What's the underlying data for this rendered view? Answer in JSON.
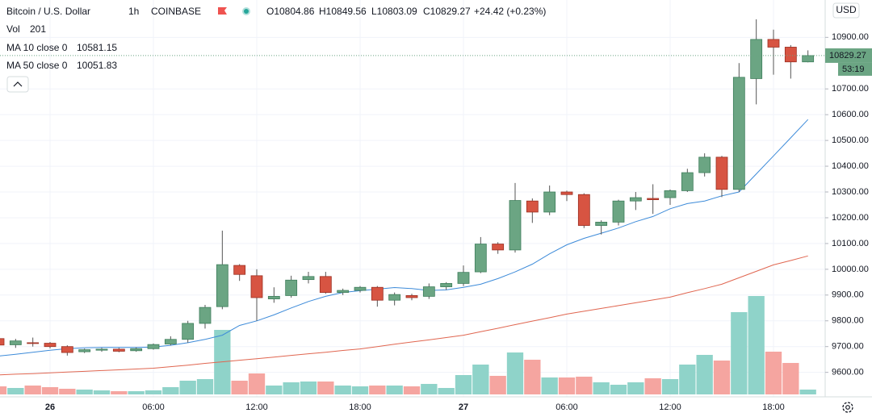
{
  "chart_data": {
    "type": "candlestick",
    "title": "Bitcoin / U.S. Dollar",
    "interval": "1h",
    "exchange": "COINBASE",
    "readout": [
      "O10804.86",
      "H10849.56",
      "L10803.09",
      "C10829.27",
      "+24.42 (+0.23%)"
    ],
    "categories": [
      null,
      null,
      null,
      "26",
      null,
      null,
      null,
      null,
      null,
      "06:00",
      null,
      null,
      null,
      null,
      null,
      "12:00",
      null,
      null,
      null,
      null,
      null,
      "18:00",
      null,
      null,
      null,
      null,
      null,
      "27",
      null,
      null,
      null,
      null,
      null,
      "06:00",
      null,
      null,
      null,
      null,
      null,
      "12:00",
      null,
      null,
      null,
      null,
      null,
      "18:00",
      null,
      null
    ],
    "open": [
      9731,
      9707,
      9715,
      9713,
      9700,
      9680,
      9686,
      9690,
      9684,
      9692,
      9710,
      9728,
      9790,
      9855,
      10015,
      9975,
      9885,
      9898,
      9960,
      9972,
      9910,
      9918,
      9930,
      9880,
      9898,
      9895,
      9932,
      9945,
      9990,
      10098,
      10075,
      10265,
      10222,
      10300,
      10290,
      10170,
      10183,
      10265,
      10275,
      10278,
      10305,
      10375,
      10435,
      10310,
      10740,
      10892,
      10862,
      10804.86
    ],
    "high": [
      9735,
      9730,
      9735,
      9718,
      9705,
      9692,
      9695,
      9695,
      9697,
      9712,
      9740,
      9800,
      9862,
      10150,
      10020,
      10000,
      9930,
      9975,
      9990,
      9990,
      9925,
      9935,
      9935,
      9910,
      9905,
      9945,
      9950,
      10015,
      10125,
      10105,
      10335,
      10275,
      10325,
      10305,
      10295,
      10190,
      10270,
      10300,
      10330,
      10310,
      10390,
      10450,
      10440,
      10800,
      10970,
      10930,
      10870,
      10849.56
    ],
    "low": [
      9700,
      9695,
      9700,
      9693,
      9665,
      9675,
      9680,
      9678,
      9680,
      9688,
      9705,
      9715,
      9770,
      9845,
      9955,
      9800,
      9870,
      9890,
      9945,
      9905,
      9900,
      9910,
      9855,
      9860,
      9880,
      9885,
      9920,
      9935,
      9985,
      10060,
      10065,
      10180,
      10210,
      10265,
      10160,
      10135,
      10170,
      10230,
      10215,
      10250,
      10300,
      10360,
      10280,
      10300,
      10640,
      10755,
      10740,
      10803.09
    ],
    "close": [
      9706,
      9722,
      9712,
      9700,
      9677,
      9688,
      9690,
      9682,
      9692,
      9708,
      9728,
      9790,
      9852,
      10018,
      9980,
      9890,
      9895,
      9958,
      9972,
      9910,
      9918,
      9930,
      9880,
      9902,
      9890,
      9932,
      9945,
      9988,
      10098,
      10075,
      10267,
      10222,
      10300,
      10290,
      10170,
      10183,
      10265,
      10278,
      10270,
      10305,
      10375,
      10435,
      10310,
      10745,
      10892,
      10862,
      10804.85,
      10829.27
    ],
    "up_color": "#6ba583",
    "down_color": "#d75442",
    "volume": {
      "name": "Vol",
      "up_color": "#8fd3c9",
      "down_color": "#f5a5a0",
      "values": [
        335,
        268,
        369,
        302,
        235,
        201,
        168,
        134,
        134,
        168,
        302,
        570,
        637,
        2680,
        570,
        871,
        369,
        503,
        536,
        536,
        369,
        335,
        369,
        369,
        335,
        436,
        268,
        804,
        1240,
        771,
        1742,
        1441,
        704,
        704,
        737,
        503,
        402,
        503,
        670,
        637,
        1240,
        1642,
        1407,
        3417,
        4087,
        1776,
        1307,
        201
      ]
    },
    "series": [
      {
        "name": "MA 10 close 0",
        "color": "#3d8bd9",
        "values": [
          9663,
          9670,
          9678,
          9686,
          9692,
          9695,
          9697,
          9697,
          9697,
          9698,
          9705,
          9715,
          9728,
          9744,
          9782,
          9800,
          9823,
          9850,
          9875,
          9895,
          9910,
          9917,
          9923,
          9929,
          9925,
          9918,
          9920,
          9930,
          9942,
          9964,
          9990,
          10020,
          10060,
          10095,
          10120,
          10140,
          10160,
          10185,
          10205,
          10235,
          10255,
          10265,
          10285,
          10300,
          10370,
          10440,
          10510,
          10581.15
        ]
      },
      {
        "name": "MA 50 close 0",
        "color": "#e06650",
        "values": [
          9590,
          9593,
          9595,
          9598,
          9601,
          9604,
          9607,
          9610,
          9613,
          9616,
          9622,
          9628,
          9635,
          9641,
          9647,
          9653,
          9659,
          9666,
          9672,
          9678,
          9685,
          9691,
          9700,
          9709,
          9718,
          9726,
          9735,
          9744,
          9758,
          9771,
          9785,
          9799,
          9812,
          9826,
          9837,
          9848,
          9859,
          9870,
          9881,
          9892,
          9909,
          9925,
          9942,
          9967,
          9992,
          10017,
          10034,
          10051.83
        ]
      }
    ],
    "ylim": [
      9505,
      11045
    ],
    "yticks": [
      {
        "value": 9600,
        "label": "9600.00"
      },
      {
        "value": 9700,
        "label": "9700.00"
      },
      {
        "value": 9800,
        "label": "9800.00"
      },
      {
        "value": 9900,
        "label": "9900.00"
      },
      {
        "value": 10000,
        "label": "10000.00"
      },
      {
        "value": 10100,
        "label": "10100.00"
      },
      {
        "value": 10200,
        "label": "10200.00"
      },
      {
        "value": 10300,
        "label": "10300.00"
      },
      {
        "value": 10400,
        "label": "10400.00"
      },
      {
        "value": 10500,
        "label": "10500.00"
      },
      {
        "value": 10600,
        "label": "10600.00"
      },
      {
        "value": 10700,
        "label": "10700.00"
      },
      {
        "value": 10900,
        "label": "10900.00"
      }
    ],
    "countdown": "53:19",
    "currency": "USD",
    "grid": true
  }
}
